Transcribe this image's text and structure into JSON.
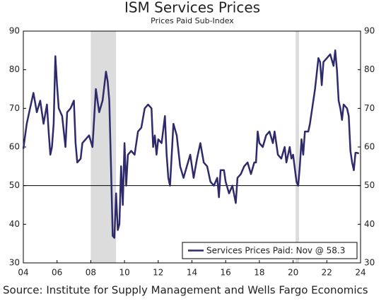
{
  "chart_data": {
    "type": "line",
    "title": "ISM Services Prices",
    "subtitle": "Prices Paid Sub-Index",
    "source": "Source: Institute for Supply Management and Wells Fargo Economics",
    "legend_label": "Services Prices Paid: Nov @ 58.3",
    "legend_position": "lower right",
    "reference_line": 50,
    "recessions": [
      [
        2008.0,
        2009.5
      ],
      [
        2020.15,
        2020.35
      ]
    ],
    "recession_color": "#dcdcdc",
    "xlim": [
      2004,
      2024
    ],
    "xticks": [
      {
        "value": 2004,
        "label": "04"
      },
      {
        "value": 2006,
        "label": "06"
      },
      {
        "value": 2008,
        "label": "08"
      },
      {
        "value": 2010,
        "label": "10"
      },
      {
        "value": 2012,
        "label": "12"
      },
      {
        "value": 2014,
        "label": "14"
      },
      {
        "value": 2016,
        "label": "16"
      },
      {
        "value": 2018,
        "label": "18"
      },
      {
        "value": 2020,
        "label": "20"
      },
      {
        "value": 2022,
        "label": "22"
      },
      {
        "value": 2024,
        "label": "24"
      }
    ],
    "ylim": [
      30,
      90
    ],
    "yticks": [
      30,
      40,
      50,
      60,
      70,
      80,
      90
    ],
    "y2lim": [
      30,
      90
    ],
    "y2ticks": [
      30,
      40,
      50,
      60,
      70,
      80,
      90
    ],
    "x": [
      2004.0,
      2004.2,
      2004.4,
      2004.6,
      2004.8,
      2005.0,
      2005.2,
      2005.4,
      2005.5,
      2005.6,
      2005.7,
      2005.8,
      2005.9,
      2006.0,
      2006.1,
      2006.3,
      2006.5,
      2006.6,
      2006.8,
      2007.0,
      2007.1,
      2007.2,
      2007.4,
      2007.5,
      2007.7,
      2007.9,
      2008.1,
      2008.3,
      2008.5,
      2008.7,
      2008.9,
      2009.0,
      2009.1,
      2009.2,
      2009.3,
      2009.4,
      2009.5,
      2009.6,
      2009.7,
      2009.8,
      2009.9,
      2010.0,
      2010.1,
      2010.2,
      2010.4,
      2010.6,
      2010.8,
      2011.0,
      2011.2,
      2011.4,
      2011.6,
      2011.7,
      2011.8,
      2011.9,
      2012.0,
      2012.2,
      2012.4,
      2012.5,
      2012.6,
      2012.7,
      2012.9,
      2013.1,
      2013.3,
      2013.5,
      2013.7,
      2013.9,
      2014.1,
      2014.3,
      2014.5,
      2014.7,
      2014.9,
      2015.1,
      2015.3,
      2015.5,
      2015.6,
      2015.7,
      2015.9,
      2016.0,
      2016.2,
      2016.4,
      2016.6,
      2016.7,
      2016.9,
      2017.1,
      2017.3,
      2017.5,
      2017.7,
      2017.8,
      2017.9,
      2018.0,
      2018.2,
      2018.4,
      2018.6,
      2018.8,
      2018.9,
      2019.1,
      2019.3,
      2019.5,
      2019.6,
      2019.8,
      2019.9,
      2020.0,
      2020.2,
      2020.3,
      2020.4,
      2020.5,
      2020.6,
      2020.7,
      2020.9,
      2021.0,
      2021.2,
      2021.3,
      2021.5,
      2021.6,
      2021.7,
      2021.8,
      2022.0,
      2022.2,
      2022.4,
      2022.5,
      2022.6,
      2022.7,
      2022.8,
      2022.9,
      2023.0,
      2023.2,
      2023.3,
      2023.4,
      2023.5,
      2023.6,
      2023.7,
      2023.8,
      2023.9
    ],
    "series": [
      {
        "name": "Services Prices Paid",
        "color": "#2e2a6b",
        "values": [
          59.5,
          66,
          70,
          74,
          69,
          72,
          66,
          71,
          64,
          58,
          60,
          66,
          83.5,
          76,
          70,
          68,
          60,
          69,
          70,
          72,
          61,
          56,
          57,
          61,
          62,
          63,
          60,
          75,
          69,
          72,
          79.5,
          77,
          72,
          55,
          37,
          36.5,
          48,
          38.5,
          40,
          55,
          45,
          61,
          50,
          58,
          59,
          58,
          64,
          65,
          70,
          71,
          70,
          60,
          63,
          58,
          62,
          61,
          68,
          58,
          52,
          50,
          66,
          63,
          55,
          52,
          55,
          58,
          52,
          57,
          61,
          56,
          55,
          51,
          50,
          52,
          47,
          54,
          54,
          51,
          48,
          50,
          45.5,
          52,
          53,
          55,
          56,
          53,
          56,
          56,
          64,
          61,
          60,
          63,
          64,
          61,
          64,
          58,
          57,
          60,
          56,
          60,
          57,
          58,
          51,
          50,
          55,
          62,
          58,
          64,
          64,
          66,
          72,
          75,
          83,
          82,
          76,
          82,
          83,
          84,
          81,
          85,
          80,
          72,
          70,
          67,
          71,
          70,
          68,
          59,
          56,
          54,
          58.5,
          58.5,
          58.3
        ]
      }
    ]
  }
}
